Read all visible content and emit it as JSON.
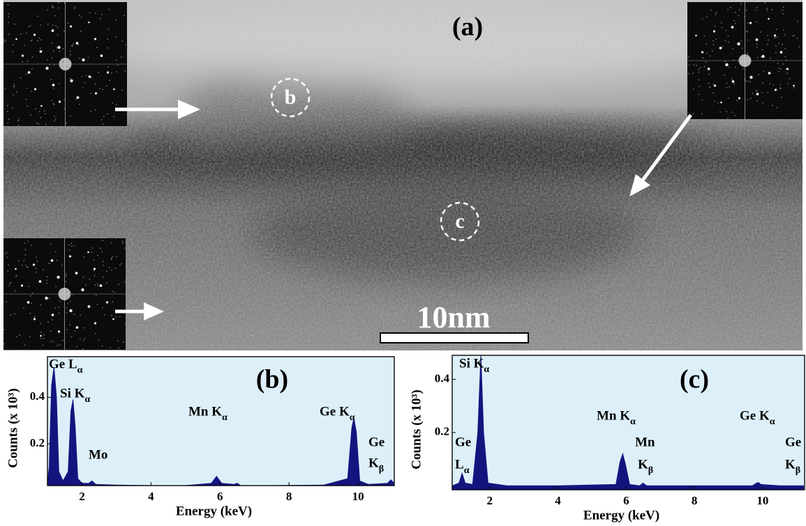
{
  "image": {
    "label": "(a)",
    "scale_bar": "10nm",
    "regions": [
      "b",
      "c"
    ]
  },
  "chart_data": [
    {
      "type": "area",
      "title": "(b)",
      "x_label": "Energy (keV)",
      "y_label": "Counts (x 10³)",
      "color": "#14147f",
      "xlim": [
        1.0,
        11.05
      ],
      "ylim": [
        0.02,
        0.575
      ],
      "xticks": [
        2,
        4,
        6,
        8,
        10
      ],
      "yticks": [
        0.2,
        0.4
      ],
      "x": [
        1.0,
        1.05,
        1.12,
        1.19,
        1.26,
        1.33,
        1.45,
        1.6,
        1.68,
        1.74,
        1.8,
        1.88,
        2.0,
        2.2,
        2.29,
        2.4,
        3.0,
        4.0,
        5.0,
        5.75,
        5.9,
        6.05,
        6.4,
        6.5,
        6.6,
        7.5,
        9.0,
        9.7,
        9.82,
        9.88,
        9.95,
        10.05,
        10.3,
        10.85,
        10.95,
        11.05
      ],
      "values": [
        0.03,
        0.1,
        0.45,
        0.53,
        0.4,
        0.08,
        0.04,
        0.08,
        0.34,
        0.39,
        0.28,
        0.05,
        0.03,
        0.03,
        0.04,
        0.025,
        0.022,
        0.02,
        0.02,
        0.03,
        0.06,
        0.03,
        0.025,
        0.03,
        0.02,
        0.02,
        0.022,
        0.05,
        0.27,
        0.31,
        0.25,
        0.04,
        0.025,
        0.03,
        0.045,
        0.03
      ],
      "annotations": [
        "Ge Lα",
        "Si Kα",
        "Mo",
        "Mn Kα",
        "Ge Kα",
        "Ge",
        "Kβ"
      ]
    },
    {
      "type": "area",
      "title": "(c)",
      "x_label": "Energy (keV)",
      "y_label": "Counts (x 10³)",
      "color": "#14147f",
      "xlim": [
        0.9,
        11.23
      ],
      "ylim": [
        -0.015,
        0.49
      ],
      "xticks": [
        2,
        4,
        6,
        8,
        10
      ],
      "yticks": [
        0.2,
        0.4
      ],
      "x": [
        0.9,
        1.1,
        1.19,
        1.28,
        1.5,
        1.65,
        1.74,
        1.82,
        1.95,
        2.5,
        4.0,
        5.7,
        5.82,
        5.9,
        5.98,
        6.1,
        6.4,
        6.49,
        6.6,
        9.7,
        9.82,
        9.88,
        9.95,
        10.5,
        11.2
      ],
      "values": [
        0.0,
        0.01,
        0.047,
        0.01,
        0.005,
        0.2,
        0.49,
        0.2,
        0.01,
        0.0,
        0.0,
        0.005,
        0.09,
        0.12,
        0.08,
        0.005,
        0.0,
        0.01,
        0.0,
        0.0,
        0.01,
        0.012,
        0.005,
        0.0,
        0.0
      ],
      "annotations": [
        "Si Kα",
        "Ge",
        "Lα",
        "Mn Kα",
        "Mn",
        "Kβ",
        "Ge Kα",
        "Ge",
        "Kβ"
      ]
    }
  ]
}
